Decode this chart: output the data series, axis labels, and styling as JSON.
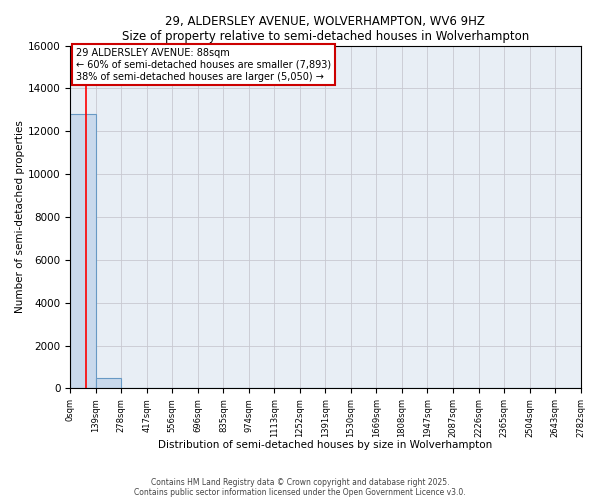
{
  "title": "29, ALDERSLEY AVENUE, WOLVERHAMPTON, WV6 9HZ",
  "subtitle": "Size of property relative to semi-detached houses in Wolverhampton",
  "xlabel": "Distribution of semi-detached houses by size in Wolverhampton",
  "ylabel": "Number of semi-detached properties",
  "bar_edges": [
    0,
    139,
    278,
    417,
    556,
    696,
    835,
    974,
    1113,
    1252,
    1391,
    1530,
    1669,
    1808,
    1947,
    2087,
    2226,
    2365,
    2504,
    2643,
    2782
  ],
  "bar_heights": [
    12800,
    490,
    0,
    0,
    0,
    0,
    0,
    0,
    0,
    0,
    0,
    0,
    0,
    0,
    0,
    0,
    0,
    0,
    0,
    0
  ],
  "bar_color": "#c9d9ec",
  "bar_edgecolor": "#6899c4",
  "grid_color": "#c8c8d0",
  "background_color": "#e8eef5",
  "red_line_x": 88,
  "annotation_title": "29 ALDERSLEY AVENUE: 88sqm",
  "annotation_line1": "← 60% of semi-detached houses are smaller (7,893)",
  "annotation_line2": "38% of semi-detached houses are larger (5,050) →",
  "annotation_box_facecolor": "#ffffff",
  "annotation_box_edgecolor": "#cc0000",
  "ylim": [
    0,
    16000
  ],
  "yticks": [
    0,
    2000,
    4000,
    6000,
    8000,
    10000,
    12000,
    14000,
    16000
  ],
  "footer1": "Contains HM Land Registry data © Crown copyright and database right 2025.",
  "footer2": "Contains public sector information licensed under the Open Government Licence v3.0."
}
